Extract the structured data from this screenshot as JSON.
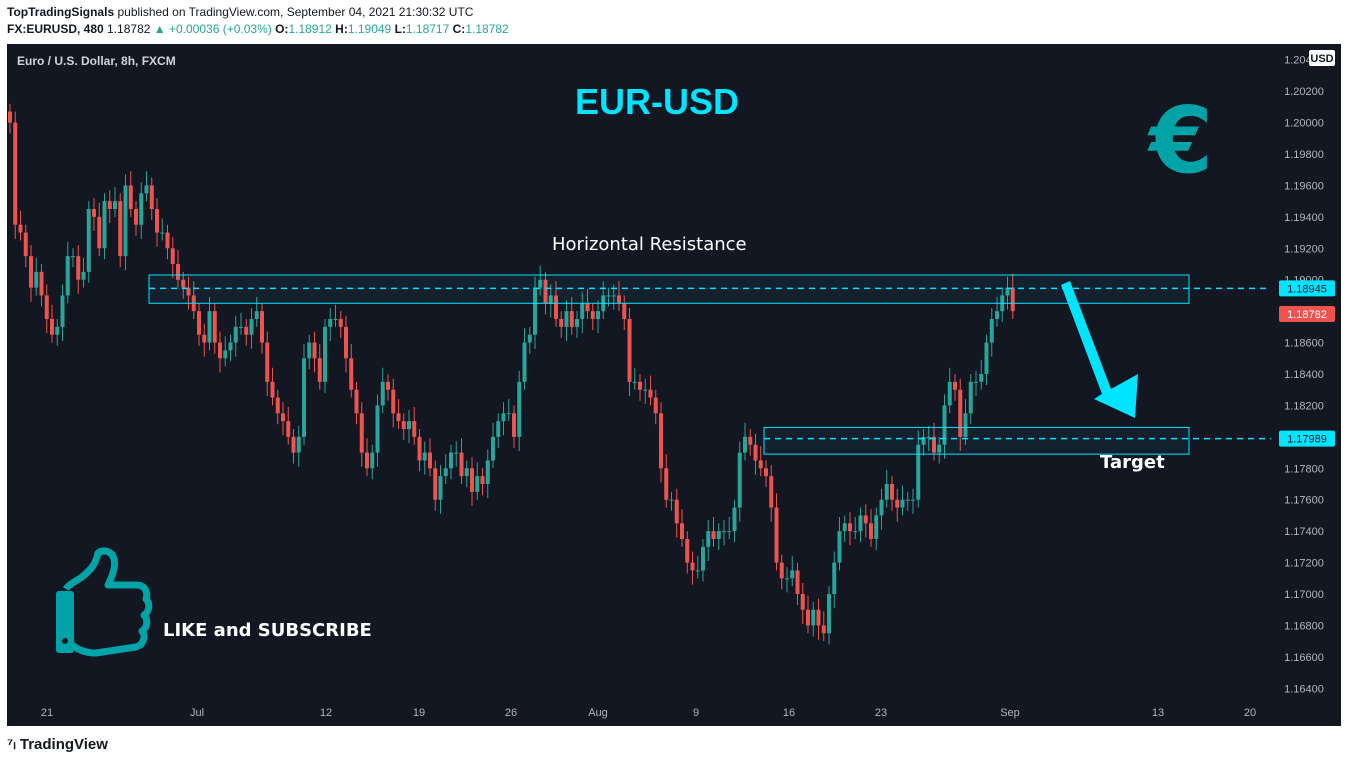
{
  "header": {
    "publisher": "TopTradingSignals",
    "published_text": "published on TradingView.com, September 04, 2021 21:30:32 UTC",
    "symbol": "FX:EURUSD, 480",
    "last": "1.18782",
    "change": "▲ +0.00036 (+0.03%)",
    "o_label": "O:",
    "o_val": "1.18912",
    "h_label": "H:",
    "h_val": "1.19049",
    "l_label": "L:",
    "l_val": "1.18717",
    "c_label": "C:",
    "c_val": "1.18782"
  },
  "chart_info": "Euro / U.S. Dollar, 8h, FXCM",
  "footer": {
    "brand": "TradingView"
  },
  "colors": {
    "up": "#26a69a",
    "down": "#ef5350",
    "accent": "#00e5ff",
    "teal": "#00a3a6",
    "bg": "#131722"
  },
  "chart_data": {
    "type": "candlestick",
    "title": "EUR-USD",
    "y_unit": "USD",
    "ylim": [
      1.163,
      1.205
    ],
    "y_ticks": [
      "1.20400",
      "1.20200",
      "1.20000",
      "1.19800",
      "1.19600",
      "1.19400",
      "1.19200",
      "1.19000",
      "1.18600",
      "1.18400",
      "1.18200",
      "1.17800",
      "1.17600",
      "1.17400",
      "1.17200",
      "1.17000",
      "1.16800",
      "1.16600",
      "1.16400"
    ],
    "x_ticks": [
      "21",
      "Jul",
      "12",
      "19",
      "26",
      "Aug",
      "9",
      "16",
      "23",
      "Sep",
      "13",
      "20"
    ],
    "price_labels": [
      {
        "text": "1.18945",
        "value": 1.18945,
        "kind": "resistance"
      },
      {
        "text": "1.18782",
        "value": 1.18782,
        "kind": "last"
      },
      {
        "text": "1.17989",
        "value": 1.17989,
        "kind": "target"
      }
    ],
    "closes": [
      1.2,
      1.1935,
      1.193,
      1.1915,
      1.1895,
      1.1905,
      1.189,
      1.1875,
      1.1865,
      1.187,
      1.189,
      1.1915,
      1.1915,
      1.19,
      1.1905,
      1.1945,
      1.194,
      1.192,
      1.195,
      1.1945,
      1.195,
      1.1915,
      1.196,
      1.1945,
      1.1935,
      1.1955,
      1.196,
      1.1945,
      1.193,
      1.193,
      1.192,
      1.191,
      1.19,
      1.1895,
      1.189,
      1.188,
      1.1865,
      1.186,
      1.188,
      1.186,
      1.185,
      1.1855,
      1.186,
      1.187,
      1.187,
      1.1865,
      1.1875,
      1.188,
      1.186,
      1.1835,
      1.1825,
      1.1815,
      1.181,
      1.18,
      1.179,
      1.18,
      1.185,
      1.186,
      1.185,
      1.1835,
      1.187,
      1.1875,
      1.1875,
      1.187,
      1.185,
      1.183,
      1.1815,
      1.179,
      1.178,
      1.179,
      1.182,
      1.1835,
      1.183,
      1.1815,
      1.181,
      1.1805,
      1.181,
      1.18,
      1.1785,
      1.179,
      1.178,
      1.176,
      1.1775,
      1.178,
      1.179,
      1.179,
      1.1775,
      1.178,
      1.1765,
      1.1775,
      1.177,
      1.1785,
      1.18,
      1.181,
      1.1815,
      1.1815,
      1.18,
      1.1835,
      1.186,
      1.1865,
      1.1895,
      1.19,
      1.1885,
      1.189,
      1.1875,
      1.187,
      1.188,
      1.187,
      1.1875,
      1.1885,
      1.188,
      1.1875,
      1.188,
      1.189,
      1.189,
      1.189,
      1.1885,
      1.1875,
      1.1835,
      1.1835,
      1.183,
      1.183,
      1.1825,
      1.1815,
      1.178,
      1.176,
      1.176,
      1.1745,
      1.1735,
      1.172,
      1.1715,
      1.1715,
      1.173,
      1.174,
      1.1735,
      1.174,
      1.174,
      1.174,
      1.1755,
      1.179,
      1.18,
      1.1795,
      1.1785,
      1.178,
      1.1775,
      1.1755,
      1.172,
      1.171,
      1.171,
      1.1715,
      1.17,
      1.169,
      1.168,
      1.169,
      1.168,
      1.1675,
      1.17,
      1.172,
      1.174,
      1.1745,
      1.174,
      1.174,
      1.175,
      1.1745,
      1.1735,
      1.175,
      1.176,
      1.177,
      1.176,
      1.1755,
      1.176,
      1.176,
      1.176,
      1.1795,
      1.18,
      1.18,
      1.179,
      1.1795,
      1.182,
      1.1835,
      1.183,
      1.18,
      1.1815,
      1.1835,
      1.1835,
      1.184,
      1.186,
      1.1875,
      1.188,
      1.189,
      1.1895,
      1.188
    ],
    "annotations": {
      "resistance_label": "Horizontal Resistance",
      "target_label": "Target",
      "cta": "LIKE and SUBSCRIBE",
      "currency_symbol": "€",
      "icons": [
        "thumbs-up-icon",
        "arrow-down-icon"
      ]
    }
  }
}
